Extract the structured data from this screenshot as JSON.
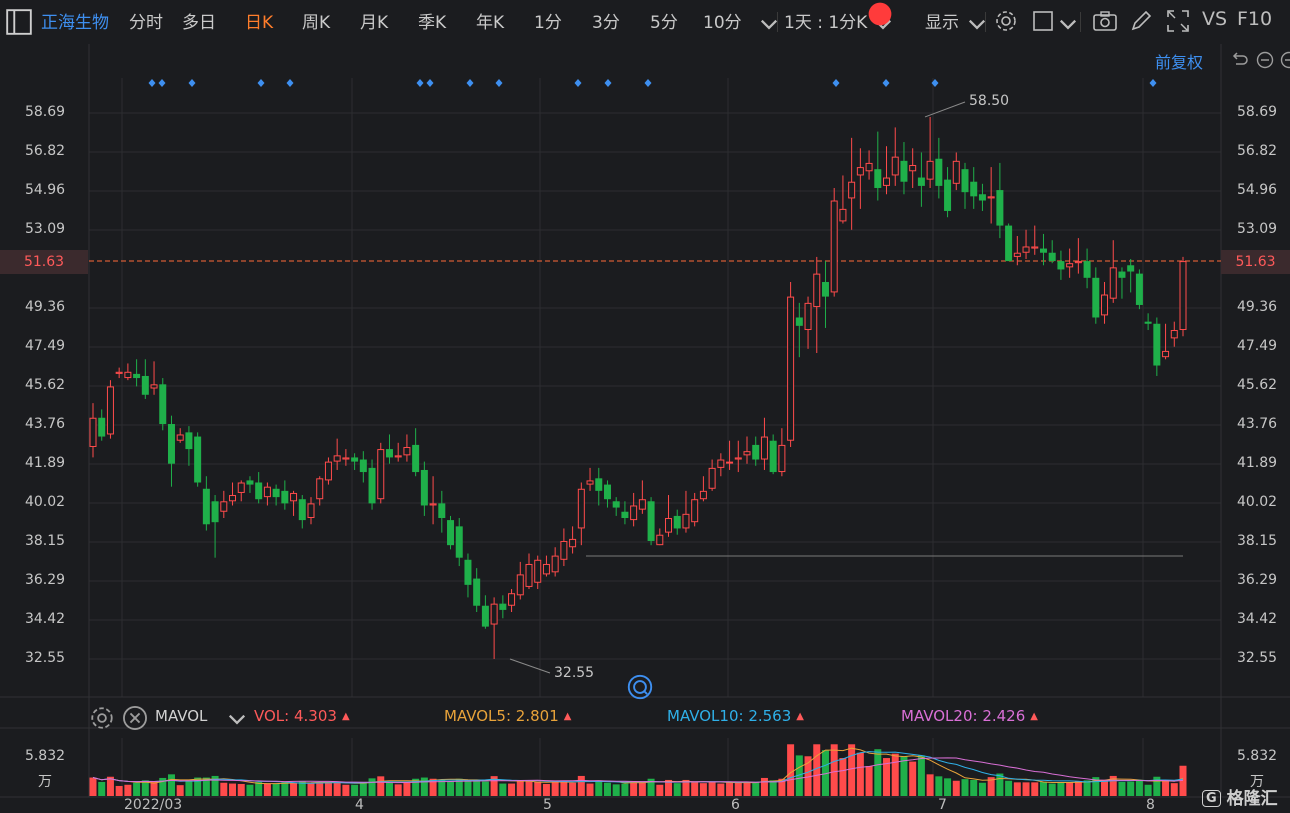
{
  "toolbar": {
    "stock_name": "正海生物",
    "periods": [
      "分时",
      "多日",
      "日K",
      "周K",
      "月K",
      "季K",
      "年K",
      "1分",
      "3分",
      "5分",
      "10分"
    ],
    "active_period": "日K",
    "interval_label": "1天 : 1分K",
    "display_label": "显示",
    "vs_label": "VS",
    "f10_label": "F10"
  },
  "chart_header": {
    "adjust_label": "前复权"
  },
  "price_axis": {
    "ticks": [
      "58.69",
      "56.82",
      "54.96",
      "53.09",
      "51.63",
      "49.36",
      "47.49",
      "45.62",
      "43.76",
      "41.89",
      "40.02",
      "38.15",
      "36.29",
      "34.42",
      "32.55"
    ],
    "current_price": "51.63"
  },
  "annotations": {
    "high_label": "58.50",
    "low_label": "32.55"
  },
  "volume_header": {
    "indicator_name": "MAVOL",
    "vol_label": "VOL:",
    "vol_value": "4.303",
    "ma5_label": "MAVOL5:",
    "ma5_value": "2.801",
    "ma10_label": "MAVOL10:",
    "ma10_value": "2.563",
    "ma20_label": "MAVOL20:",
    "ma20_value": "2.426"
  },
  "volume_axis": {
    "max_label": "5.832",
    "unit_label": "万"
  },
  "time_axis": [
    "2022/03",
    "4",
    "5",
    "6",
    "7",
    "8"
  ],
  "watermark": "格隆汇",
  "colors": {
    "up": "#ff4b4b",
    "down": "#1fb04a",
    "accent": "#3e8ff0",
    "active": "#ff7d2b",
    "ma5": "#e8a33a",
    "ma10": "#2fb0e8",
    "ma20": "#d96fd6"
  },
  "chart_data": {
    "type": "candlestick",
    "y_range": [
      32.55,
      58.69
    ],
    "candles": [
      [
        42.7,
        44.1,
        44.8,
        42.2
      ],
      [
        44.1,
        43.2,
        44.5,
        43.0
      ],
      [
        43.3,
        45.6,
        45.9,
        43.1
      ],
      [
        46.2,
        46.3,
        46.5,
        46.0
      ],
      [
        46.0,
        46.3,
        46.7,
        45.9
      ],
      [
        46.2,
        46.0,
        46.9,
        45.6
      ],
      [
        46.1,
        45.2,
        46.9,
        45.0
      ],
      [
        45.5,
        45.7,
        46.8,
        45.2
      ],
      [
        45.7,
        43.8,
        46.0,
        43.5
      ],
      [
        43.8,
        41.9,
        44.2,
        40.8
      ],
      [
        43.0,
        43.3,
        43.6,
        42.9
      ],
      [
        43.4,
        42.6,
        43.7,
        41.8
      ],
      [
        43.2,
        41.0,
        43.4,
        40.8
      ],
      [
        40.7,
        39.0,
        41.3,
        38.7
      ],
      [
        40.1,
        39.1,
        40.4,
        37.4
      ],
      [
        39.6,
        40.1,
        40.6,
        39.3
      ],
      [
        40.1,
        40.4,
        41.0,
        39.9
      ],
      [
        40.5,
        41.0,
        41.1,
        40.1
      ],
      [
        41.1,
        40.9,
        41.3,
        40.5
      ],
      [
        41.0,
        40.2,
        41.5,
        40.0
      ],
      [
        40.3,
        40.8,
        41.0,
        39.9
      ],
      [
        40.7,
        40.3,
        40.9,
        39.9
      ],
      [
        40.6,
        40.0,
        41.1,
        39.7
      ],
      [
        40.1,
        40.5,
        40.6,
        39.4
      ],
      [
        40.2,
        39.2,
        40.4,
        38.8
      ],
      [
        39.3,
        40.0,
        40.3,
        39.0
      ],
      [
        40.2,
        41.2,
        41.3,
        39.9
      ],
      [
        41.1,
        42.0,
        42.2,
        40.9
      ],
      [
        42.0,
        42.3,
        43.1,
        41.6
      ],
      [
        42.1,
        42.2,
        42.6,
        41.8
      ],
      [
        42.2,
        42.0,
        42.4,
        41.6
      ],
      [
        42.1,
        41.5,
        42.5,
        41.0
      ],
      [
        41.7,
        40.0,
        42.1,
        39.7
      ],
      [
        40.2,
        42.6,
        42.9,
        40.0
      ],
      [
        42.6,
        42.2,
        43.3,
        41.9
      ],
      [
        42.2,
        42.3,
        42.9,
        42.0
      ],
      [
        42.3,
        42.7,
        43.3,
        42.0
      ],
      [
        42.8,
        41.5,
        43.6,
        41.3
      ],
      [
        41.6,
        39.9,
        42.0,
        39.4
      ],
      [
        39.9,
        40.0,
        41.3,
        39.0
      ],
      [
        40.0,
        39.3,
        40.6,
        38.6
      ],
      [
        39.2,
        38.0,
        39.4,
        37.8
      ],
      [
        38.9,
        37.4,
        39.3,
        37.0
      ],
      [
        37.3,
        36.1,
        37.6,
        35.5
      ],
      [
        36.4,
        35.1,
        36.9,
        34.8
      ],
      [
        35.1,
        34.1,
        35.6,
        34.0
      ],
      [
        34.2,
        35.2,
        35.5,
        32.55
      ],
      [
        35.2,
        34.9,
        35.6,
        34.5
      ],
      [
        35.1,
        35.7,
        35.9,
        34.8
      ],
      [
        35.6,
        36.6,
        37.2,
        35.4
      ],
      [
        36.0,
        37.1,
        37.6,
        35.9
      ],
      [
        36.2,
        37.3,
        37.5,
        35.9
      ],
      [
        36.6,
        37.1,
        37.5,
        36.5
      ],
      [
        36.7,
        37.5,
        37.9,
        36.5
      ],
      [
        37.3,
        38.2,
        38.8,
        37.0
      ],
      [
        37.9,
        38.3,
        38.9,
        37.6
      ],
      [
        38.8,
        40.7,
        41.0,
        38.0
      ],
      [
        40.9,
        41.1,
        41.7,
        40.6
      ],
      [
        41.2,
        40.6,
        41.7,
        39.9
      ],
      [
        40.9,
        40.2,
        41.1,
        39.8
      ],
      [
        40.1,
        39.8,
        40.3,
        39.4
      ],
      [
        39.6,
        39.3,
        40.1,
        39.0
      ],
      [
        39.2,
        39.9,
        40.5,
        38.9
      ],
      [
        39.7,
        40.2,
        41.1,
        39.5
      ],
      [
        40.1,
        38.2,
        40.3,
        38.0
      ],
      [
        38.0,
        38.5,
        38.8,
        38.0
      ],
      [
        38.6,
        39.3,
        40.4,
        38.4
      ],
      [
        39.4,
        38.8,
        39.7,
        38.5
      ],
      [
        38.8,
        39.5,
        40.6,
        38.6
      ],
      [
        39.1,
        40.2,
        40.5,
        38.9
      ],
      [
        40.2,
        40.6,
        41.3,
        40.1
      ],
      [
        40.7,
        41.7,
        42.1,
        40.6
      ],
      [
        41.7,
        42.1,
        42.4,
        41.3
      ],
      [
        42.0,
        42.0,
        43.0,
        41.6
      ],
      [
        42.1,
        42.2,
        43.0,
        41.5
      ],
      [
        42.3,
        42.5,
        43.2,
        41.9
      ],
      [
        42.8,
        42.1,
        43.2,
        41.8
      ],
      [
        42.1,
        43.2,
        44.1,
        41.6
      ],
      [
        43.0,
        41.5,
        43.3,
        41.4
      ],
      [
        41.5,
        42.8,
        43.6,
        41.3
      ],
      [
        43.0,
        49.9,
        50.6,
        42.7
      ],
      [
        48.9,
        48.5,
        49.6,
        47.0
      ],
      [
        48.3,
        49.6,
        49.9,
        47.4
      ],
      [
        49.4,
        51.0,
        51.8,
        47.2
      ],
      [
        50.6,
        49.9,
        51.6,
        48.4
      ],
      [
        50.1,
        54.5,
        55.1,
        49.9
      ],
      [
        53.5,
        54.1,
        55.7,
        53.4
      ],
      [
        54.6,
        55.4,
        57.5,
        53.1
      ],
      [
        55.7,
        56.1,
        57.0,
        54.1
      ],
      [
        55.9,
        56.3,
        56.9,
        55.5
      ],
      [
        56.0,
        55.1,
        57.8,
        54.5
      ],
      [
        55.2,
        55.6,
        57.1,
        54.8
      ],
      [
        55.7,
        56.6,
        58.0,
        55.2
      ],
      [
        56.4,
        55.4,
        57.3,
        54.8
      ],
      [
        55.9,
        56.2,
        57.0,
        55.1
      ],
      [
        55.6,
        55.2,
        56.8,
        54.2
      ],
      [
        55.5,
        56.4,
        58.5,
        55.1
      ],
      [
        56.5,
        55.2,
        57.5,
        54.6
      ],
      [
        55.5,
        54.0,
        56.1,
        53.7
      ],
      [
        55.3,
        56.4,
        56.8,
        55.0
      ],
      [
        56.0,
        54.9,
        56.3,
        54.1
      ],
      [
        55.4,
        54.7,
        56.1,
        54.1
      ],
      [
        54.8,
        54.5,
        55.3,
        54.0
      ],
      [
        54.6,
        54.7,
        56.1,
        53.4
      ],
      [
        55.0,
        53.3,
        56.3,
        52.7
      ],
      [
        53.3,
        51.6,
        53.4,
        51.6
      ],
      [
        51.8,
        52.0,
        52.8,
        51.4
      ],
      [
        52.0,
        52.3,
        53.1,
        51.7
      ],
      [
        52.2,
        52.3,
        53.3,
        51.9
      ],
      [
        52.2,
        52.0,
        52.9,
        51.4
      ],
      [
        52.0,
        51.6,
        52.6,
        51.5
      ],
      [
        51.6,
        51.2,
        52.1,
        50.7
      ],
      [
        51.3,
        51.5,
        52.2,
        50.8
      ],
      [
        51.5,
        51.6,
        52.7,
        51.0
      ],
      [
        51.6,
        50.8,
        52.2,
        50.3
      ],
      [
        50.8,
        48.9,
        51.3,
        48.6
      ],
      [
        49.0,
        50.0,
        50.6,
        48.6
      ],
      [
        49.8,
        51.3,
        52.6,
        49.6
      ],
      [
        51.1,
        50.8,
        51.3,
        49.8
      ],
      [
        51.4,
        51.1,
        51.7,
        50.1
      ],
      [
        51.0,
        49.5,
        51.2,
        49.3
      ],
      [
        48.7,
        48.6,
        49.1,
        48.3
      ],
      [
        48.6,
        46.6,
        48.9,
        46.1
      ],
      [
        47.0,
        47.3,
        48.6,
        46.9
      ],
      [
        47.9,
        48.3,
        48.7,
        47.5
      ],
      [
        48.3,
        51.6,
        51.8,
        48.0
      ]
    ]
  }
}
